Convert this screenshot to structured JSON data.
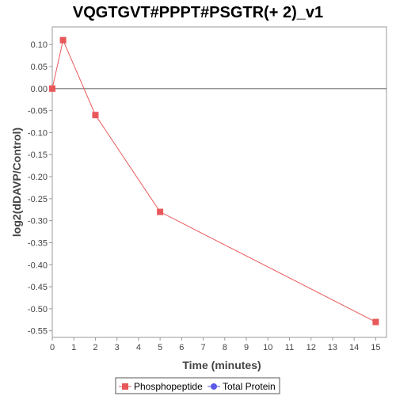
{
  "chart_data": {
    "type": "line",
    "title": "VQGTGVT#PPPT#PSGTR(+ 2)_v1",
    "xlabel": "Time (minutes)",
    "ylabel": "log2(dDAVP/Control)",
    "xlim": [
      0,
      15.5
    ],
    "ylim": [
      -0.565,
      0.14
    ],
    "x_ticks": [
      0,
      1,
      2,
      3,
      4,
      5,
      6,
      7,
      8,
      9,
      10,
      11,
      12,
      13,
      14,
      15
    ],
    "y_ticks": [
      0.1,
      0.05,
      0.0,
      -0.05,
      -0.1,
      -0.15,
      -0.2,
      -0.25,
      -0.3,
      -0.35,
      -0.4,
      -0.45,
      -0.5,
      -0.55
    ],
    "y_tick_labels": [
      "0.10",
      "0.05",
      "0.00",
      "-0.05",
      "-0.10",
      "-0.15",
      "-0.20",
      "-0.25",
      "-0.30",
      "-0.35",
      "-0.40",
      "-0.45",
      "-0.50",
      "-0.55"
    ],
    "zero_line": true,
    "grid": false,
    "legend_position": "bottom",
    "series": [
      {
        "name": "Phosphopeptide",
        "color": "#e8585a",
        "marker": "square",
        "x": [
          0,
          0.5,
          2,
          5,
          15
        ],
        "y": [
          0.0,
          0.11,
          -0.06,
          -0.28,
          -0.53
        ]
      },
      {
        "name": "Total Protein",
        "color": "#5a5ae8",
        "marker": "circle",
        "x": [],
        "y": []
      }
    ]
  }
}
